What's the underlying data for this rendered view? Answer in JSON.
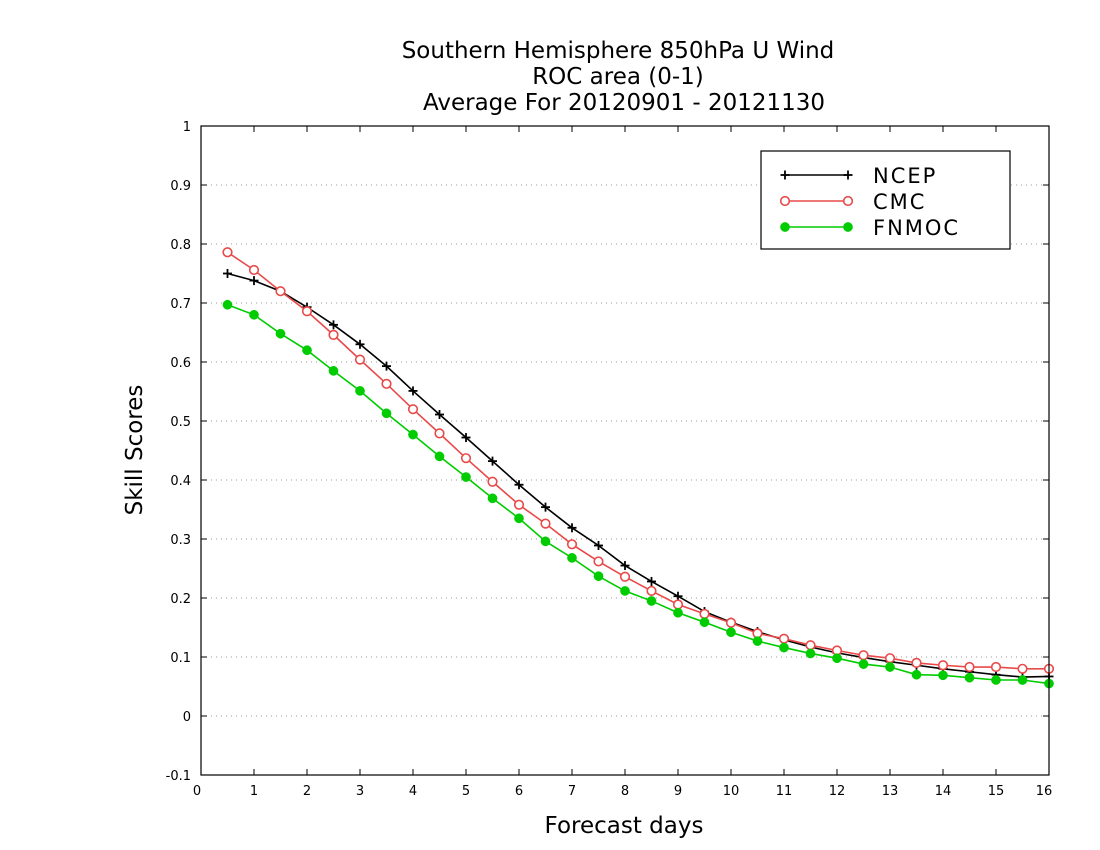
{
  "chart_data": {
    "type": "line",
    "title_lines": [
      "Southern Hemisphere 850hPa U Wind",
      "ROC area (0-1)",
      "Average For 20120901 - 20121130"
    ],
    "xlabel": "Forecast days",
    "ylabel": "Skill Scores",
    "xlim": [
      0,
      16
    ],
    "ylim": [
      -0.1,
      1
    ],
    "x_ticks": [
      0,
      1,
      2,
      3,
      4,
      5,
      6,
      7,
      8,
      9,
      10,
      11,
      12,
      13,
      14,
      15,
      16
    ],
    "x_tick_labels": [
      "0",
      "1",
      "2",
      "3",
      "4",
      "5",
      "6",
      "7",
      "8",
      "9",
      "10",
      "11",
      "12",
      "13",
      "14",
      "15",
      "16"
    ],
    "y_ticks": [
      -0.1,
      0,
      0.1,
      0.2,
      0.3,
      0.4,
      0.5,
      0.6,
      0.7,
      0.8,
      0.9,
      1
    ],
    "y_tick_labels": [
      "-0.1",
      "0",
      "0.1",
      "0.2",
      "0.3",
      "0.4",
      "0.5",
      "0.6",
      "0.7",
      "0.8",
      "0.9",
      "1"
    ],
    "grid": true,
    "legend_position": "top-right",
    "x": [
      0.5,
      1,
      1.5,
      2,
      2.5,
      3,
      3.5,
      4,
      4.5,
      5,
      5.5,
      6,
      6.5,
      7,
      7.5,
      8,
      8.5,
      9,
      9.5,
      10,
      10.5,
      11,
      11.5,
      12,
      12.5,
      13,
      13.5,
      14,
      14.5,
      15,
      15.5,
      16
    ],
    "series": [
      {
        "name": "NCEP",
        "color": "#000000",
        "marker": "plus",
        "values": [
          0.75,
          0.738,
          0.72,
          0.693,
          0.663,
          0.63,
          0.593,
          0.551,
          0.511,
          0.472,
          0.432,
          0.392,
          0.354,
          0.319,
          0.289,
          0.255,
          0.228,
          0.203,
          0.177,
          0.159,
          0.143,
          0.129,
          0.117,
          0.107,
          0.099,
          0.092,
          0.086,
          0.08,
          0.075,
          0.07,
          0.066,
          0.067
        ]
      },
      {
        "name": "CMC",
        "color": "#e84a4a",
        "marker": "open-circle",
        "values": [
          0.786,
          0.756,
          0.72,
          0.686,
          0.646,
          0.604,
          0.563,
          0.52,
          0.479,
          0.437,
          0.397,
          0.358,
          0.326,
          0.291,
          0.262,
          0.236,
          0.212,
          0.189,
          0.173,
          0.158,
          0.14,
          0.131,
          0.12,
          0.111,
          0.103,
          0.098,
          0.09,
          0.086,
          0.083,
          0.083,
          0.08,
          0.08
        ]
      },
      {
        "name": "FNMOC",
        "color": "#00cc00",
        "marker": "filled-circle",
        "values": [
          0.697,
          0.68,
          0.648,
          0.62,
          0.585,
          0.551,
          0.513,
          0.477,
          0.44,
          0.405,
          0.369,
          0.335,
          0.296,
          0.268,
          0.237,
          0.212,
          0.195,
          0.175,
          0.159,
          0.142,
          0.127,
          0.116,
          0.106,
          0.098,
          0.088,
          0.083,
          0.07,
          0.069,
          0.065,
          0.061,
          0.061,
          0.055
        ]
      }
    ]
  }
}
